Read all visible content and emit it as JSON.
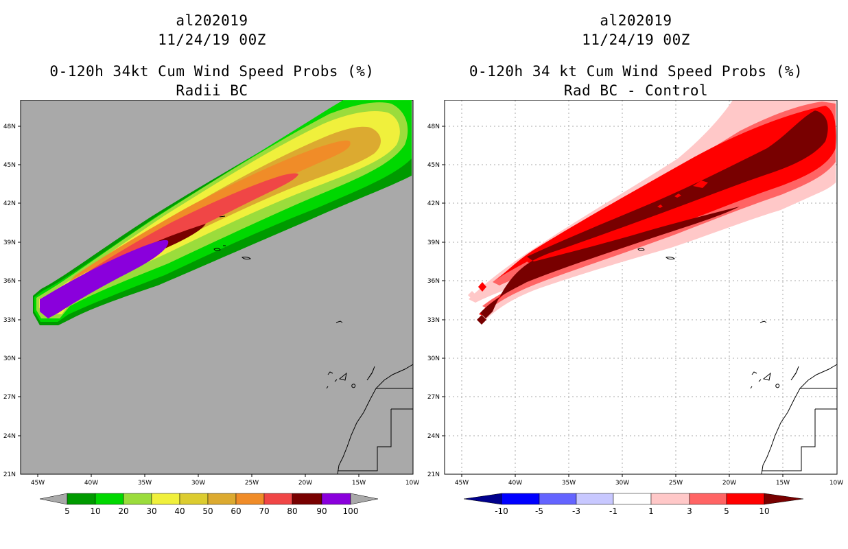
{
  "left": {
    "title1": "al202019",
    "title2": "11/24/19 00Z",
    "title3": "0-120h 34kt Cum Wind Speed Probs (%)",
    "title4": "Radii BC",
    "background": "#a9a9a9",
    "colorbar": {
      "labels": [
        "5",
        "10",
        "20",
        "30",
        "40",
        "50",
        "60",
        "70",
        "80",
        "90",
        "100"
      ],
      "colors": [
        "#a9a9a9",
        "#009a00",
        "#00d800",
        "#9bdc3c",
        "#f0f03c",
        "#dccc30",
        "#dcaa30",
        "#f08c28",
        "#f04646",
        "#780000",
        "#8a00dc",
        "#a9a9a9"
      ]
    }
  },
  "right": {
    "title1": "al202019",
    "title2": "11/24/19 00Z",
    "title3": "0-120h 34 kt Cum Wind Speed Probs (%)",
    "title4": "Rad BC - Control",
    "background": "#ffffff",
    "colorbar": {
      "labels": [
        "-10",
        "-5",
        "-3",
        "-1",
        "1",
        "3",
        "5",
        "10"
      ],
      "colors": [
        "#00008c",
        "#0000ff",
        "#6464ff",
        "#c8c8ff",
        "#ffffff",
        "#ffc8c8",
        "#ff6464",
        "#ff0000",
        "#780000"
      ]
    }
  },
  "axes": {
    "lat_labels": [
      "48N",
      "45N",
      "42N",
      "39N",
      "36N",
      "33N",
      "30N",
      "27N",
      "24N",
      "21N"
    ],
    "lon_labels": [
      "45W",
      "40W",
      "35W",
      "30W",
      "25W",
      "20W",
      "15W",
      "10W"
    ]
  }
}
